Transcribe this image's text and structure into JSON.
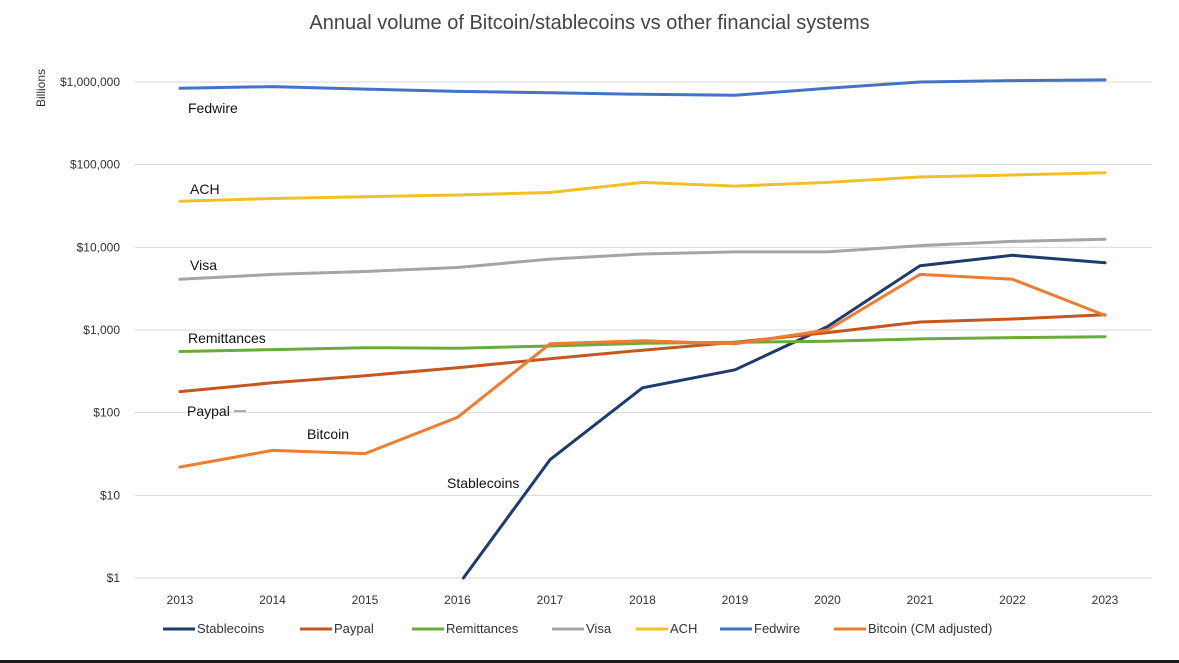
{
  "chart_data": {
    "type": "line",
    "title": "Annual volume of Bitcoin/stablecoins vs other financial systems",
    "xlabel": "",
    "ylabel": "Billions",
    "yscale": "log",
    "ylim": [
      1,
      1000000
    ],
    "yticks": [
      {
        "value": 1,
        "label": "$1"
      },
      {
        "value": 10,
        "label": "$10"
      },
      {
        "value": 100,
        "label": "$100"
      },
      {
        "value": 1000,
        "label": "$1,000"
      },
      {
        "value": 10000,
        "label": "$10,000"
      },
      {
        "value": 100000,
        "label": "$100,000"
      },
      {
        "value": 1000000,
        "label": "$1,000,000"
      }
    ],
    "x": [
      "2013",
      "2014",
      "2015",
      "2016",
      "2017",
      "2018",
      "2019",
      "2020",
      "2021",
      "2022",
      "2023"
    ],
    "series": [
      {
        "name": "Stablecoins",
        "color": "#1f3b6e",
        "values": [
          null,
          null,
          null,
          0.8,
          27,
          200,
          330,
          1100,
          6000,
          8000,
          6500
        ]
      },
      {
        "name": "Paypal",
        "color": "#c5561f",
        "values": [
          180,
          230,
          280,
          350,
          450,
          570,
          710,
          930,
          1250,
          1360,
          1530
        ]
      },
      {
        "name": "Remittances",
        "color": "#6aab3c",
        "values": [
          550,
          580,
          610,
          600,
          640,
          690,
          710,
          730,
          780,
          810,
          830
        ]
      },
      {
        "name": "Visa",
        "color": "#a5a5a5",
        "values": [
          4100,
          4700,
          5100,
          5700,
          7200,
          8300,
          8800,
          8800,
          10500,
          11800,
          12500
        ]
      },
      {
        "name": "ACH",
        "color": "#f2c026",
        "values": [
          36000,
          39000,
          41000,
          43000,
          46000,
          61000,
          55000,
          61000,
          71000,
          75000,
          80000
        ]
      },
      {
        "name": "Fedwire",
        "color": "#4472c4",
        "values": [
          840000,
          880000,
          820000,
          770000,
          740000,
          710000,
          690000,
          840000,
          1000000,
          1040000,
          1060000
        ]
      },
      {
        "name": "Bitcoin (CM adjusted)",
        "color": "#ed7d31",
        "values": [
          22,
          35,
          32,
          88,
          680,
          740,
          680,
          1000,
          4700,
          4100,
          1500
        ]
      }
    ],
    "annotations": [
      {
        "text": "Fedwire",
        "series": "Fedwire"
      },
      {
        "text": "ACH",
        "series": "ACH"
      },
      {
        "text": "Visa",
        "series": "Visa"
      },
      {
        "text": "Remittances",
        "series": "Remittances"
      },
      {
        "text": "Paypal",
        "series": "Paypal"
      },
      {
        "text": "Bitcoin",
        "series": "Bitcoin (CM adjusted)"
      },
      {
        "text": "Stablecoins",
        "series": "Stablecoins"
      }
    ],
    "legend_position": "bottom",
    "grid": true
  }
}
